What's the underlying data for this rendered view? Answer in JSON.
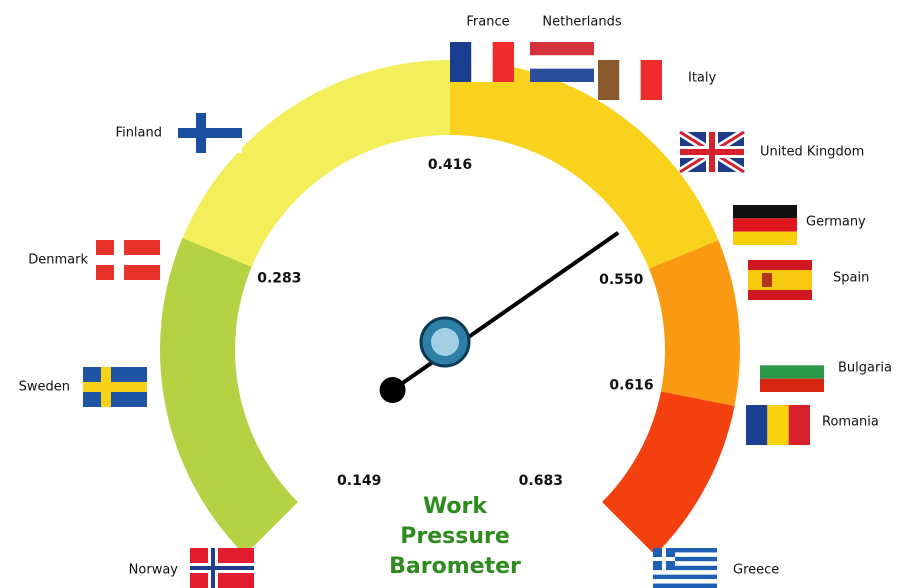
{
  "chart_data": {
    "type": "gauge",
    "title": [
      "Work",
      "Pressure",
      "Barometer"
    ],
    "ylim": [
      0.149,
      0.683
    ],
    "yticks": [
      0.149,
      0.283,
      0.416,
      {
        "value": 0.55,
        "label": "0.550"
      },
      0.616,
      0.683
    ],
    "bands": [
      {
        "from": 0.149,
        "to": 0.283,
        "color": "#b5d144"
      },
      {
        "from": 0.283,
        "to": 0.416,
        "color": "#f3ef5a"
      },
      {
        "from": 0.416,
        "to": 0.55,
        "color": "#f8d21c"
      },
      {
        "from": 0.55,
        "to": 0.616,
        "color": "#f99a12"
      },
      {
        "from": 0.616,
        "to": 0.683,
        "color": "#f4400f"
      }
    ],
    "value": 0.525,
    "countries": [
      "Norway",
      "Sweden",
      "Denmark",
      "Finland",
      "France",
      "Netherlands",
      "Italy",
      "United Kingdom",
      "Germany",
      "Spain",
      "Bulgaria",
      "Romania",
      "Greece"
    ]
  }
}
